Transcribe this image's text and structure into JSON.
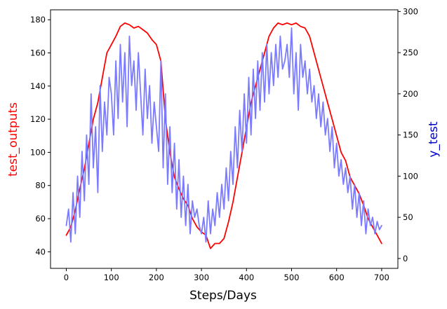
{
  "chart_data": {
    "type": "line",
    "xlabel": "Steps/Days",
    "ylabel_left": "test_outputs",
    "ylabel_right": "y_test",
    "ylabel_left_color": "#ff0000",
    "ylabel_right_color": "#0000cc",
    "xlim": [
      -35,
      736
    ],
    "ylim_left": [
      30,
      186
    ],
    "ylim_right": [
      -12,
      302
    ],
    "xticks": [
      0,
      100,
      200,
      300,
      400,
      500,
      600,
      700
    ],
    "yticks_left": [
      40,
      60,
      80,
      100,
      120,
      140,
      160,
      180
    ],
    "yticks_right": [
      0,
      50,
      100,
      150,
      200,
      250,
      300
    ],
    "grid": false,
    "series": [
      {
        "axis": "left",
        "color": "#ff0000",
        "x": [
          0,
          10,
          20,
          30,
          40,
          50,
          60,
          70,
          80,
          90,
          100,
          110,
          120,
          130,
          140,
          150,
          160,
          170,
          180,
          190,
          200,
          210,
          220,
          230,
          240,
          250,
          260,
          270,
          280,
          290,
          300,
          310,
          320,
          330,
          340,
          350,
          360,
          370,
          380,
          390,
          400,
          410,
          420,
          430,
          440,
          450,
          460,
          470,
          480,
          490,
          500,
          510,
          520,
          530,
          540,
          550,
          560,
          570,
          580,
          590,
          600,
          610,
          620,
          630,
          640,
          650,
          660,
          670,
          680,
          690,
          700
        ],
        "values": [
          50,
          55,
          65,
          78,
          90,
          105,
          120,
          130,
          145,
          160,
          165,
          170,
          176,
          178,
          177,
          175,
          176,
          174,
          172,
          168,
          165,
          155,
          120,
          100,
          85,
          78,
          72,
          68,
          60,
          55,
          52,
          50,
          42,
          45,
          45,
          48,
          58,
          70,
          85,
          100,
          115,
          130,
          140,
          150,
          160,
          170,
          175,
          178,
          177,
          178,
          177,
          178,
          176,
          175,
          170,
          160,
          150,
          140,
          130,
          120,
          110,
          100,
          95,
          85,
          80,
          75,
          68,
          60,
          55,
          50,
          45
        ]
      },
      {
        "axis": "right",
        "color": "#7b7bff",
        "x": [
          0,
          5,
          10,
          15,
          20,
          25,
          30,
          35,
          40,
          45,
          50,
          55,
          60,
          65,
          70,
          75,
          80,
          85,
          90,
          95,
          100,
          105,
          110,
          115,
          120,
          125,
          130,
          135,
          140,
          145,
          150,
          155,
          160,
          165,
          170,
          175,
          180,
          185,
          190,
          195,
          200,
          205,
          210,
          215,
          220,
          225,
          230,
          235,
          240,
          245,
          250,
          255,
          260,
          265,
          270,
          275,
          280,
          285,
          290,
          295,
          300,
          305,
          310,
          315,
          320,
          325,
          330,
          335,
          340,
          345,
          350,
          355,
          360,
          365,
          370,
          375,
          380,
          385,
          390,
          395,
          400,
          405,
          410,
          415,
          420,
          425,
          430,
          435,
          440,
          445,
          450,
          455,
          460,
          465,
          470,
          475,
          480,
          485,
          490,
          495,
          500,
          505,
          510,
          515,
          520,
          525,
          530,
          535,
          540,
          545,
          550,
          555,
          560,
          565,
          570,
          575,
          580,
          585,
          590,
          595,
          600,
          605,
          610,
          615,
          620,
          625,
          630,
          635,
          640,
          645,
          650,
          655,
          660,
          665,
          670,
          675,
          680,
          685,
          690,
          695,
          700
        ],
        "values": [
          40,
          60,
          20,
          80,
          30,
          100,
          50,
          130,
          70,
          150,
          90,
          200,
          110,
          160,
          80,
          210,
          130,
          190,
          150,
          220,
          200,
          150,
          240,
          170,
          260,
          190,
          250,
          160,
          270,
          210,
          240,
          180,
          250,
          200,
          150,
          230,
          170,
          210,
          140,
          190,
          160,
          130,
          240,
          110,
          200,
          90,
          160,
          80,
          140,
          60,
          120,
          50,
          100,
          40,
          90,
          30,
          70,
          50,
          60,
          40,
          30,
          50,
          20,
          70,
          30,
          60,
          40,
          80,
          50,
          90,
          60,
          110,
          70,
          130,
          90,
          160,
          110,
          180,
          130,
          200,
          140,
          220,
          150,
          230,
          170,
          240,
          180,
          250,
          190,
          260,
          200,
          250,
          210,
          260,
          220,
          270,
          230,
          240,
          260,
          220,
          280,
          200,
          250,
          180,
          260,
          220,
          240,
          200,
          230,
          190,
          210,
          170,
          200,
          160,
          190,
          150,
          170,
          130,
          160,
          110,
          140,
          100,
          120,
          90,
          110,
          80,
          100,
          60,
          90,
          50,
          80,
          40,
          70,
          30,
          60,
          40,
          50,
          30,
          45,
          35,
          40
        ]
      }
    ]
  }
}
